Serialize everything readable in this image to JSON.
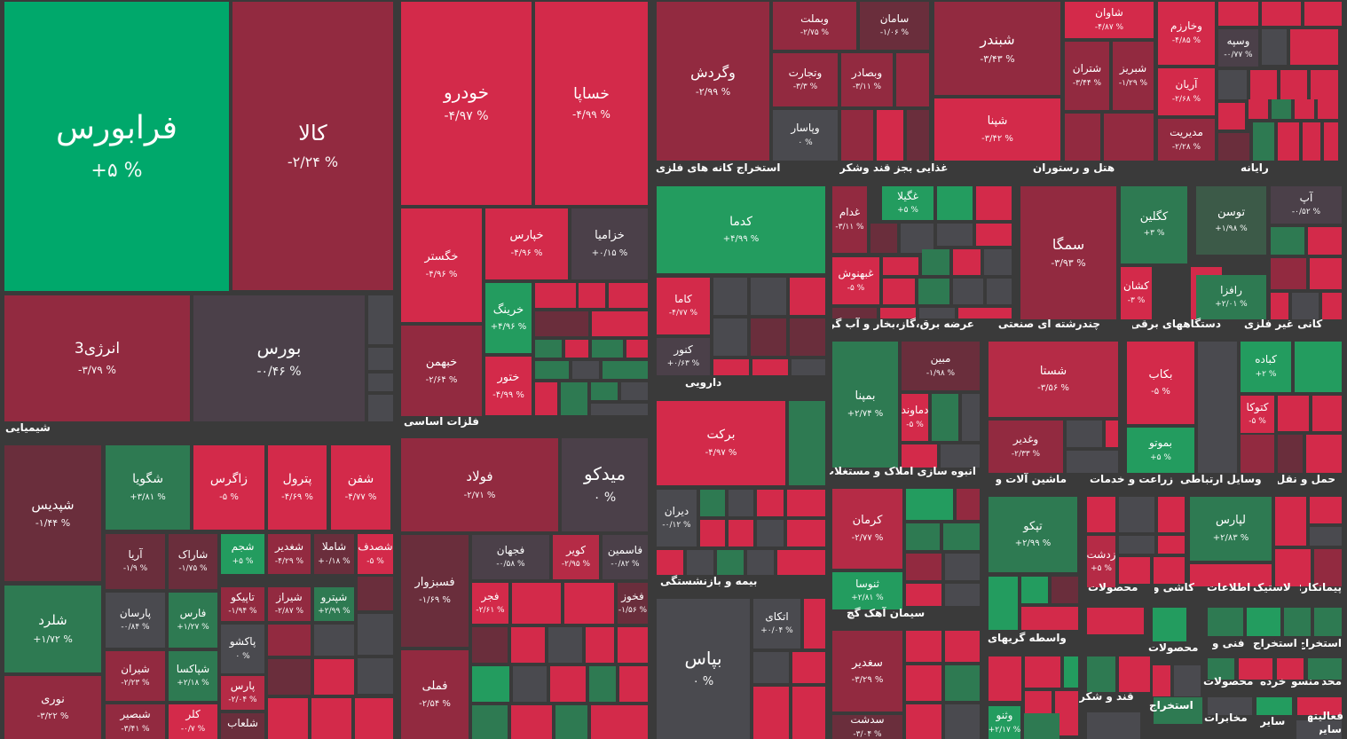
{
  "tiles": [
    {
      "name": "فرابورس",
      "pct": "+۵ %"
    },
    {
      "name": "کالا",
      "pct": "-۲/۲۴ %"
    },
    {
      "name": "خودرو",
      "pct": "-۴/۹۷ %"
    },
    {
      "name": "خساپا",
      "pct": "-۴/۹۹ %"
    },
    {
      "name": "انرژی3",
      "pct": "-۳/۷۹ %"
    },
    {
      "name": "بورس",
      "pct": "-۰/۴۶ %"
    },
    {
      "name": "خگستر",
      "pct": "-۴/۹۶ %"
    },
    {
      "name": "خپارس",
      "pct": "-۴/۹۶ %"
    },
    {
      "name": "خزامیا",
      "pct": "+۰/۱۵ %"
    },
    {
      "name": "خرینگ",
      "pct": "+۴/۹۶ %"
    },
    {
      "name": "خبهمن",
      "pct": "-۲/۶۴ %"
    },
    {
      "name": "ختور",
      "pct": "-۴/۹۹ %"
    },
    {
      "name": "شپدیس",
      "pct": "-۱/۴۴ %"
    },
    {
      "name": "شگویا",
      "pct": "+۳/۸۱ %"
    },
    {
      "name": "زاگرس",
      "pct": "-۵ %"
    },
    {
      "name": "پترول",
      "pct": "-۴/۶۹ %"
    },
    {
      "name": "شفن",
      "pct": "-۴/۷۷ %"
    },
    {
      "name": "آریا",
      "pct": "-۱/۹ %"
    },
    {
      "name": "شاراک",
      "pct": "-۱/۷۵ %"
    },
    {
      "name": "شجم",
      "pct": "+۵ %"
    },
    {
      "name": "شغدیر",
      "pct": "-۴/۲۹ %"
    },
    {
      "name": "شاملا",
      "pct": "+۰/۱۸ %"
    },
    {
      "name": "شصدف",
      "pct": "-۵ %"
    },
    {
      "name": "شلرد",
      "pct": "+۱/۷۲ %"
    },
    {
      "name": "پارسان",
      "pct": "-۰/۸۴ %"
    },
    {
      "name": "فارس",
      "pct": "+۱/۲۷ %"
    },
    {
      "name": "تاپیکو",
      "pct": "-۱/۹۴ %"
    },
    {
      "name": "شیراز",
      "pct": "-۲/۸۷ %"
    },
    {
      "name": "شپترو",
      "pct": "+۲/۹۹ %"
    },
    {
      "name": "پاکشو",
      "pct": "۰ %"
    },
    {
      "name": "نوری",
      "pct": "-۳/۲۲ %"
    },
    {
      "name": "شیران",
      "pct": "-۲/۲۳ %"
    },
    {
      "name": "شپاکسا",
      "pct": "+۲/۱۸ %"
    },
    {
      "name": "پارس",
      "pct": "-۲/۰۴ %"
    },
    {
      "name": "شبصیر",
      "pct": "-۳/۴۱ %"
    },
    {
      "name": "کلر",
      "pct": "-۰/۷ %"
    },
    {
      "name": "شلعاب",
      "pct": ""
    },
    {
      "name": "فولاد",
      "pct": "-۲/۷۱ %"
    },
    {
      "name": "میدکو",
      "pct": "۰ %"
    },
    {
      "name": "فجهان",
      "pct": "-۰/۵۸ %"
    },
    {
      "name": "کویر",
      "pct": "-۲/۹۵ %"
    },
    {
      "name": "فاسمین",
      "pct": "-۰/۸۲ %"
    },
    {
      "name": "فسبزوار",
      "pct": "-۱/۶۹ %"
    },
    {
      "name": "فجر",
      "pct": "-۲/۶۱ %"
    },
    {
      "name": "فخوز",
      "pct": "-۱/۵۶ %"
    },
    {
      "name": "فملی",
      "pct": "-۲/۵۴ %"
    },
    {
      "name": "وگردش",
      "pct": "-۲/۹۹ %"
    },
    {
      "name": "وبملت",
      "pct": "-۲/۷۵ %"
    },
    {
      "name": "سامان",
      "pct": "-۱/۰۶ %"
    },
    {
      "name": "وتجارت",
      "pct": "-۳/۳ %"
    },
    {
      "name": "وبصادر",
      "pct": "-۳/۱۱ %"
    },
    {
      "name": "وپاسار",
      "pct": "۰ %"
    },
    {
      "name": "شبندر",
      "pct": "-۳/۴۳ %"
    },
    {
      "name": "شپنا",
      "pct": "-۳/۴۲ %"
    },
    {
      "name": "شاوان",
      "pct": "-۴/۸۷ %"
    },
    {
      "name": "شتران",
      "pct": "-۳/۴۴ %"
    },
    {
      "name": "شبریز",
      "pct": "-۱/۲۹ %"
    },
    {
      "name": "وخارزم",
      "pct": "-۴/۸۵ %"
    },
    {
      "name": "وسپه",
      "pct": "-۰/۷۷ %"
    },
    {
      "name": "آریان",
      "pct": "-۲/۶۸ %"
    },
    {
      "name": "مدیریت",
      "pct": "-۲/۲۸ %"
    },
    {
      "name": "کدما",
      "pct": "+۴/۹۹ %"
    },
    {
      "name": "کاما",
      "pct": "-۴/۷۷ %"
    },
    {
      "name": "کنور",
      "pct": "+۰/۶۳ %"
    },
    {
      "name": "غدام",
      "pct": "-۳/۱۱ %"
    },
    {
      "name": "غگیلا",
      "pct": "+۵ %"
    },
    {
      "name": "غبهنوش",
      "pct": "-۵ %"
    },
    {
      "name": "سمگا",
      "pct": "-۳/۹۳ %"
    },
    {
      "name": "کگلین",
      "pct": "+۳ %"
    },
    {
      "name": "کشان",
      "pct": "-۳ %"
    },
    {
      "name": "توسن",
      "pct": "+۱/۹۸ %"
    },
    {
      "name": "آپ",
      "pct": "-۰/۵۲ %"
    },
    {
      "name": "رافزا",
      "pct": "+۲/۰۱ %"
    },
    {
      "name": "برکت",
      "pct": "-۴/۹۷ %"
    },
    {
      "name": "دیران",
      "pct": "-۰/۱۲ %"
    },
    {
      "name": "بپاس",
      "pct": "۰ %"
    },
    {
      "name": "اتکای",
      "pct": "+۰/۰۴ %"
    },
    {
      "name": "بمپنا",
      "pct": "+۲/۷۴ %"
    },
    {
      "name": "مبین",
      "pct": "-۱/۹۸ %"
    },
    {
      "name": "دماوند",
      "pct": "-۵ %"
    },
    {
      "name": "شستا",
      "pct": "-۳/۵۶ %"
    },
    {
      "name": "وغدیر",
      "pct": "-۲/۳۳ %"
    },
    {
      "name": "بکاب",
      "pct": "-۵ %"
    },
    {
      "name": "بموتو",
      "pct": "+۵ %"
    },
    {
      "name": "کباده",
      "pct": "+۲ %"
    },
    {
      "name": "کتوکا",
      "pct": "-۵ %"
    },
    {
      "name": "کرمان",
      "pct": "-۲/۷۷ %"
    },
    {
      "name": "ثنوسا",
      "pct": "+۲/۸۱ %"
    },
    {
      "name": "سغدیر",
      "pct": "-۳/۲۹ %"
    },
    {
      "name": "سدشت",
      "pct": "-۳/۰۴ %"
    },
    {
      "name": "تپکو",
      "pct": "+۲/۹۹ %"
    },
    {
      "name": "لپارس",
      "pct": "+۲/۸۳ %"
    },
    {
      "name": "زدشت",
      "pct": "+۵ %"
    },
    {
      "name": "وثنو",
      "pct": "+۲/۱۷ %"
    }
  ],
  "sections": [
    "شیمیایی",
    "فلزات اساسی",
    "استخراج کانه های فلزی",
    "غذایی بجز قند وشکر",
    "هتل و رستوران",
    "رایانه",
    "دارویی",
    "عرضه برق،گاز،بخار و آب گرم",
    "چندرشته ای صنعتی",
    "دستگاههای برقی",
    "کانی غیر فلزی",
    "بیمه و بازنشستگی",
    "انبوه سازی املاک و مستغلات",
    "ماشین آلات و",
    "زراعت و خدمات",
    "وسایل ارتباطی",
    "حمل و نقل",
    "سیمان آهک گچ",
    "محصولات",
    "کاشی و",
    "اطلاعات",
    "لاستیک",
    "پیمانکار:",
    "واسطه گریهای",
    "محصولات",
    "فنی و",
    "استخراج",
    "استخراج",
    "قند و شکر",
    "استخراج",
    "محصولات",
    "خرده",
    "منسو",
    "محد",
    "مخابرات",
    "سایر",
    "فعالیتهای",
    "سایر"
  ]
}
